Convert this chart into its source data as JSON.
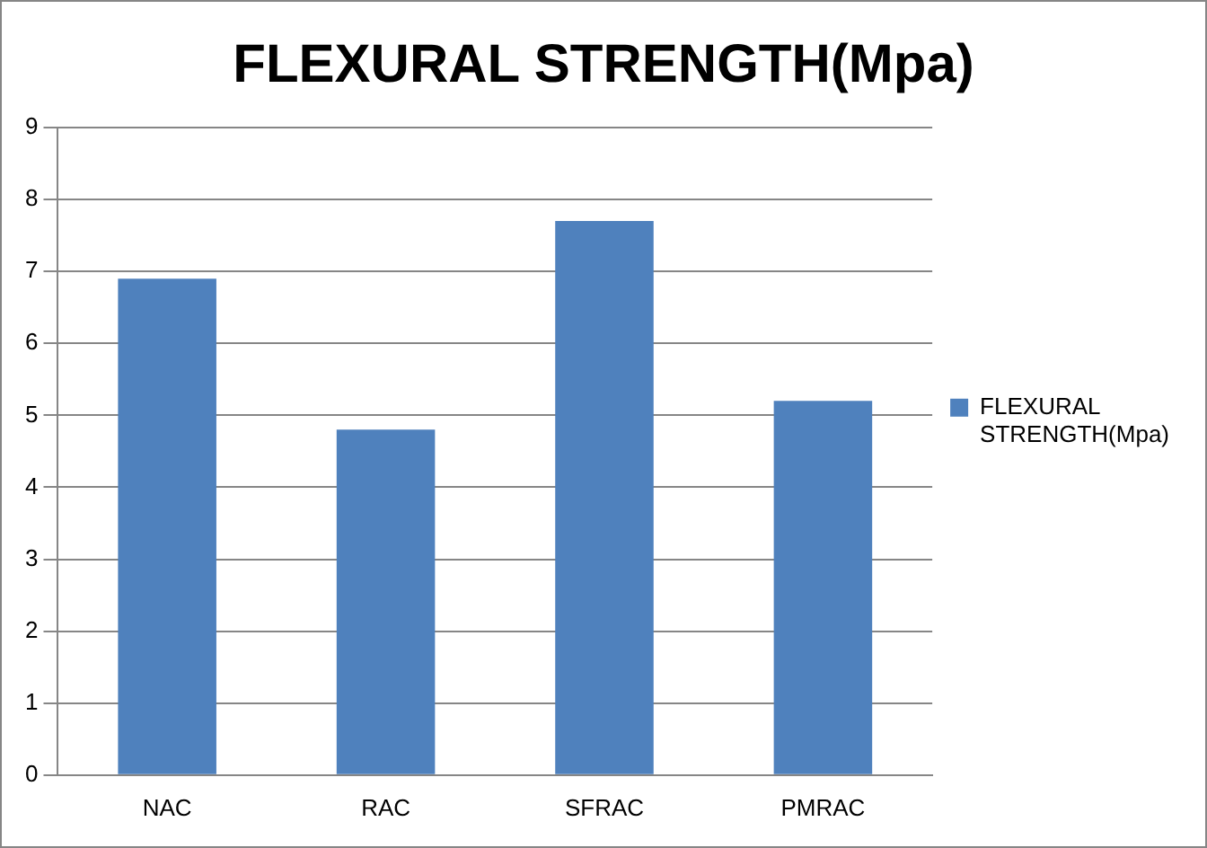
{
  "chart_data": {
    "type": "bar",
    "title": "FLEXURAL STRENGTH(Mpa)",
    "categories": [
      "NAC",
      "RAC",
      "SFRAC",
      "PMRAC"
    ],
    "series": [
      {
        "name": "FLEXURAL STRENGTH(Mpa)",
        "color": "#4f81bd",
        "values": [
          6.9,
          4.8,
          7.7,
          5.2
        ]
      }
    ],
    "ylim": [
      0,
      9
    ],
    "yticks": [
      0,
      1,
      2,
      3,
      4,
      5,
      6,
      7,
      8,
      9
    ],
    "grid": "y",
    "legend": "right"
  }
}
